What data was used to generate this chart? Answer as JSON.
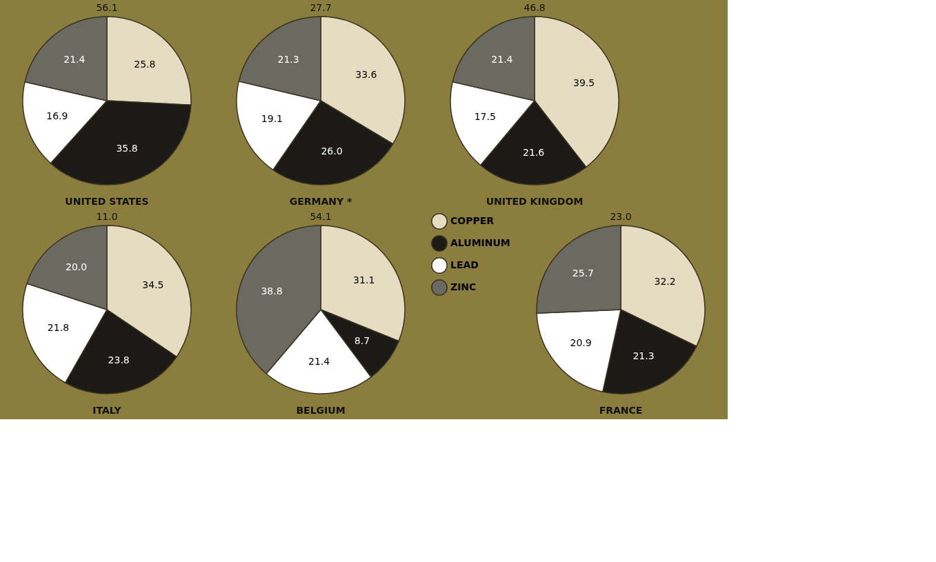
{
  "chart_data": [
    {
      "type": "pie",
      "title": "UNITED STATES",
      "annotations": [
        "56.1"
      ],
      "categories": [
        null,
        null,
        null,
        null
      ],
      "values": [
        25.8,
        35.8,
        16.9,
        21.4
      ],
      "colors": [
        "#e6dcc2",
        "#1c1a16",
        "#ffffff",
        "#6b6a60"
      ],
      "value_labels": [
        "25.8",
        "35.8",
        "16.9",
        "21.4"
      ]
    },
    {
      "type": "pie",
      "title": "GERMANY *",
      "annotations": [
        "27.7"
      ],
      "categories": [
        null,
        null,
        null,
        null
      ],
      "values": [
        33.6,
        26.0,
        19.1,
        21.3
      ],
      "colors": [
        "#e6dcc2",
        "#1c1a16",
        "#ffffff",
        "#6b6a60"
      ],
      "value_labels": [
        "33.6",
        "26.0",
        "19.1",
        "21.3"
      ]
    },
    {
      "type": "pie",
      "title": "UNITED KINGDOM",
      "annotations": [
        "46.8"
      ],
      "categories": [
        null,
        null,
        null,
        null
      ],
      "values": [
        39.5,
        21.6,
        17.5,
        21.4
      ],
      "colors": [
        "#e6dcc2",
        "#1c1a16",
        "#ffffff",
        "#6b6a60"
      ],
      "value_labels": [
        "39.5",
        "21.6",
        "17.5",
        "21.4"
      ]
    },
    {
      "type": "pie",
      "title": "ITALY",
      "annotations": [
        "11.0"
      ],
      "categories": [
        null,
        null,
        null,
        null
      ],
      "values": [
        34.5,
        23.8,
        21.8,
        20.0
      ],
      "colors": [
        "#e6dcc2",
        "#1c1a16",
        "#ffffff",
        "#6b6a60"
      ],
      "value_labels": [
        "34.5",
        "23.8",
        "21.8",
        "20.0"
      ]
    },
    {
      "type": "pie",
      "title": "BELGIUM",
      "annotations": [
        "54.1"
      ],
      "categories": [
        "COPPER",
        "ALUMINUM",
        "LEAD",
        "ZINC"
      ],
      "values": [
        31.1,
        8.7,
        21.4,
        38.8
      ],
      "colors": [
        "#e6dcc2",
        "#1c1a16",
        "#ffffff",
        "#6b6a60"
      ],
      "value_labels": [
        "31.1",
        "8.7",
        "21.4",
        "38.8"
      ],
      "legend": "right"
    },
    {
      "type": "pie",
      "title": "FRANCE",
      "annotations": [
        "23.0"
      ],
      "categories": [
        null,
        null,
        null,
        null
      ],
      "values": [
        32.2,
        21.3,
        20.9,
        25.7
      ],
      "colors": [
        "#e6dcc2",
        "#1c1a16",
        "#ffffff",
        "#6b6a60"
      ],
      "value_labels": [
        "32.2",
        "21.3",
        "20.9",
        "25.7"
      ]
    }
  ]
}
